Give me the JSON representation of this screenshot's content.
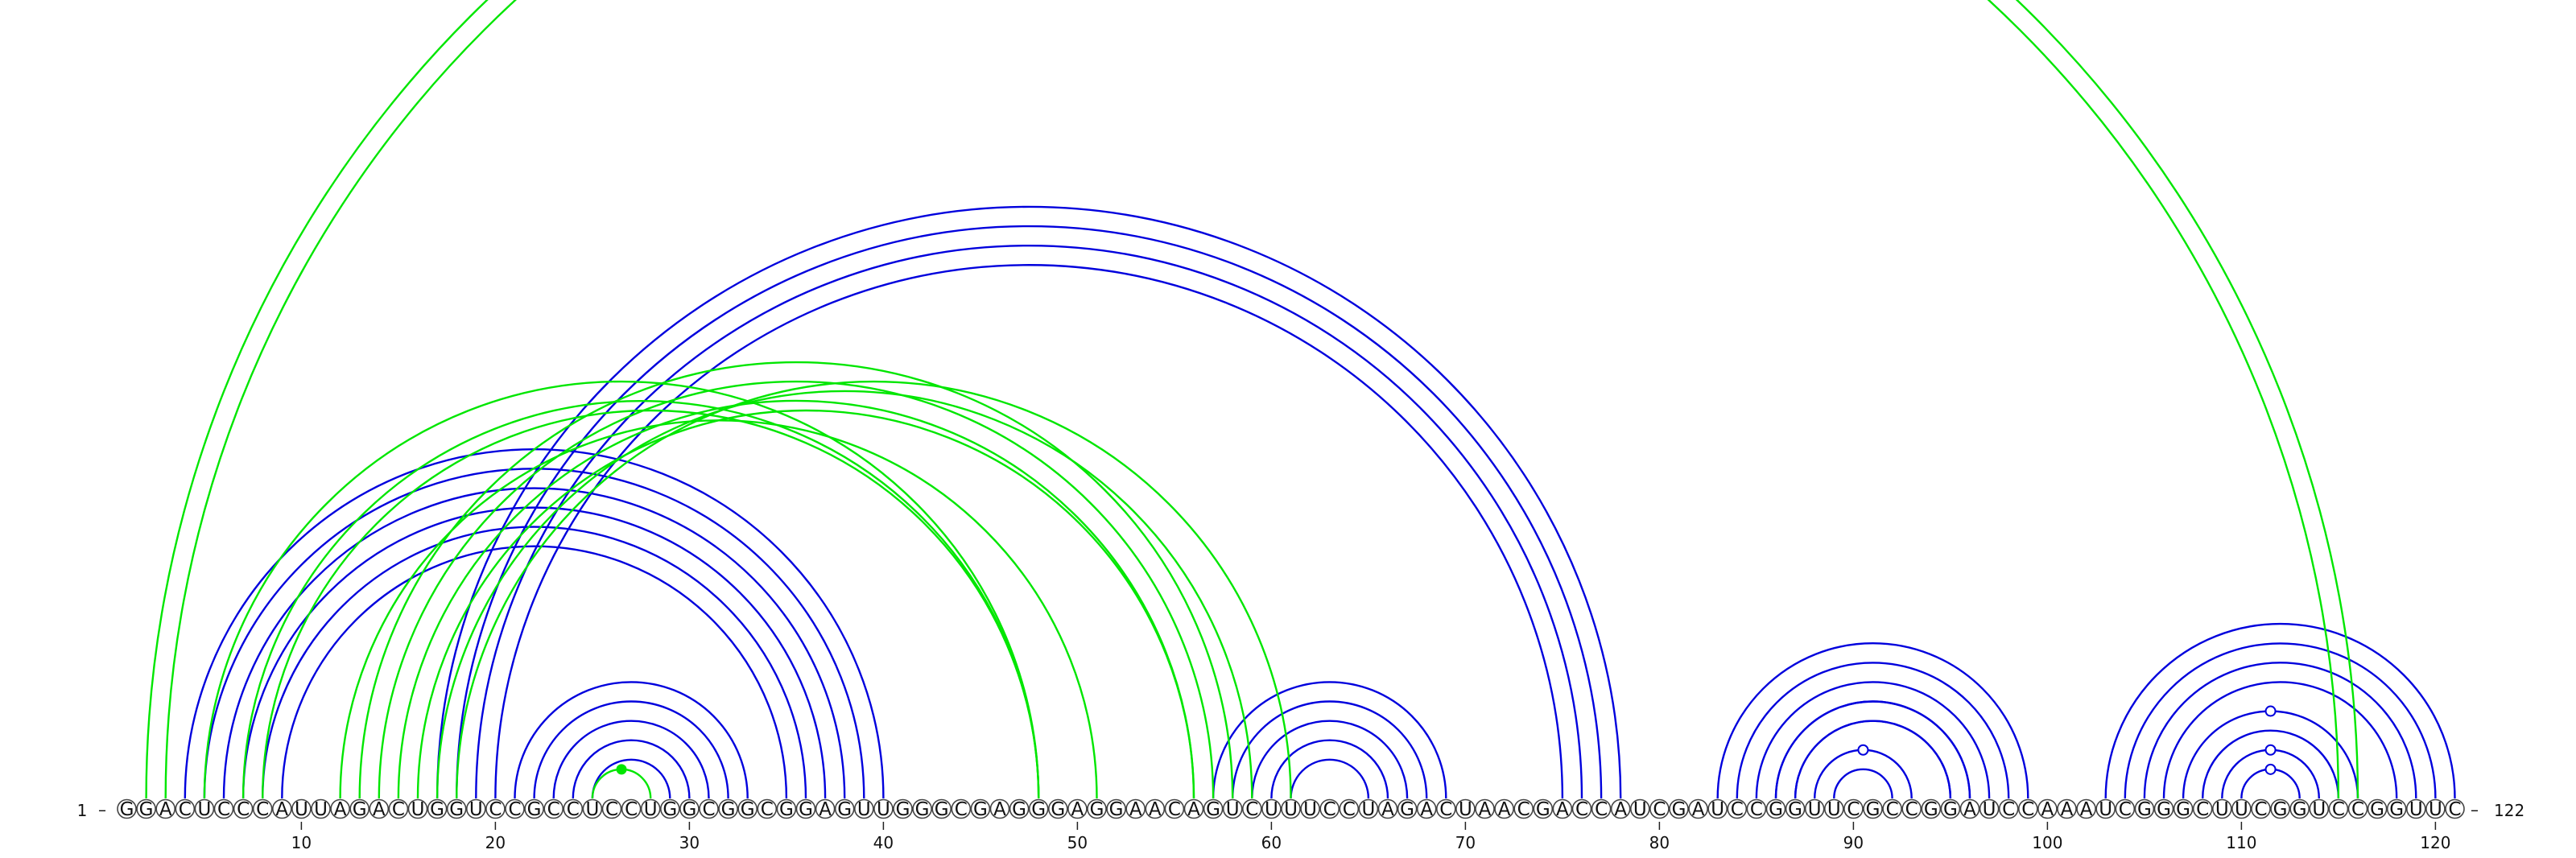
{
  "sequence": "GGACUCCCAUUAGACUGGUCCGCCUCCUGGCGGCGGAGUUGGGCGAGGGAGGAACAGUCUUUCCUAGACUAACGACCAUCGAUCCGGUUCGCCGGAUCCAAAUCGGGCUUCGGUCCGGUUC",
  "start_label": "1",
  "end_label": "122",
  "tick_labels": [
    "10",
    "20",
    "30",
    "40",
    "50",
    "60",
    "70",
    "80",
    "90",
    "100",
    "110",
    "120"
  ],
  "colors": {
    "structure_a": "#0000dd",
    "structure_b": "#00e600"
  },
  "blue_helices": [
    {
      "i": 4,
      "j": 40,
      "length": 6
    },
    {
      "i": 17,
      "j": 78,
      "length": 4
    },
    {
      "i": 21,
      "j": 33,
      "length": 5
    },
    {
      "i": 57,
      "j": 69,
      "length": 5
    },
    {
      "i": 83,
      "j": 99,
      "length": 5
    },
    {
      "i": 86,
      "j": 96,
      "length": 2
    },
    {
      "i": 88,
      "j": 93,
      "length": 2
    },
    {
      "i": 103,
      "j": 121,
      "length": 4
    },
    {
      "i": 107,
      "j": 116,
      "length": 3
    },
    {
      "i": 110,
      "j": 113,
      "length": 1
    }
  ],
  "green_helices": [
    {
      "i": 2,
      "j": 116,
      "length": 2
    },
    {
      "i": 5,
      "j": 48,
      "length": 1
    },
    {
      "i": 7,
      "j": 48,
      "length": 1
    },
    {
      "i": 8,
      "j": 48,
      "length": 1
    },
    {
      "i": 12,
      "j": 51,
      "length": 1
    },
    {
      "i": 13,
      "j": 58,
      "length": 3
    },
    {
      "i": 16,
      "j": 56,
      "length": 1
    },
    {
      "i": 17,
      "j": 59,
      "length": 1
    },
    {
      "i": 18,
      "j": 61,
      "length": 1
    },
    {
      "i": 25,
      "j": 28,
      "length": 1
    }
  ],
  "blue_markers": [
    91,
    112
  ],
  "green_markers": [
    26.5
  ]
}
